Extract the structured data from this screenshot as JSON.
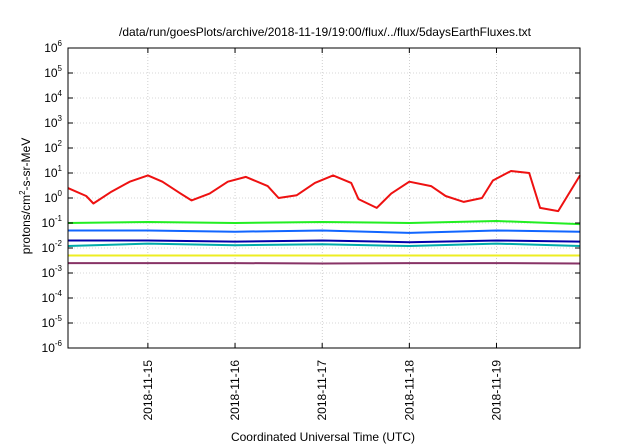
{
  "chart_data": {
    "type": "line",
    "title": "/data/run/goesPlots/archive/2018-11-19/19:00/flux/../flux/5daysEarthFluxes.txt",
    "xlabel": "Coordinated Universal Time (UTC)",
    "ylabel": {
      "prefix": "protons/cm",
      "sup": "2",
      "suffix": "-s-sr-MeV"
    },
    "y_scale": "log",
    "ylim": [
      1e-06,
      1000000
    ],
    "y_ticks": [
      {
        "value": 1e-06,
        "base": "10",
        "exp": "-6"
      },
      {
        "value": 1e-05,
        "base": "10",
        "exp": "-5"
      },
      {
        "value": 0.0001,
        "base": "10",
        "exp": "-4"
      },
      {
        "value": 0.001,
        "base": "10",
        "exp": "-3"
      },
      {
        "value": 0.01,
        "base": "10",
        "exp": "-2"
      },
      {
        "value": 0.1,
        "base": "10",
        "exp": "-1"
      },
      {
        "value": 1,
        "base": "10",
        "exp": "0"
      },
      {
        "value": 10,
        "base": "10",
        "exp": "1"
      },
      {
        "value": 100,
        "base": "10",
        "exp": "2"
      },
      {
        "value": 1000,
        "base": "10",
        "exp": "3"
      },
      {
        "value": 10000,
        "base": "10",
        "exp": "4"
      },
      {
        "value": 100000,
        "base": "10",
        "exp": "5"
      },
      {
        "value": 1000000,
        "base": "10",
        "exp": "6"
      }
    ],
    "xlim": [
      "2018-11-14 02:00",
      "2018-11-19 23:00"
    ],
    "x_ticks": [
      {
        "value": "2018-11-15 00:00",
        "label": "2018-11-15"
      },
      {
        "value": "2018-11-16 00:00",
        "label": "2018-11-16"
      },
      {
        "value": "2018-11-17 00:00",
        "label": "2018-11-17"
      },
      {
        "value": "2018-11-18 00:00",
        "label": "2018-11-18"
      },
      {
        "value": "2018-11-19 00:00",
        "label": "2018-11-19"
      }
    ],
    "grid": true,
    "legend": "none",
    "series": [
      {
        "color": "#ee1111",
        "x": [
          "2018-11-14 02:00",
          "2018-11-14 07:00",
          "2018-11-14 09:00",
          "2018-11-14 14:00",
          "2018-11-14 19:00",
          "2018-11-15 00:00",
          "2018-11-15 04:00",
          "2018-11-15 09:00",
          "2018-11-15 12:00",
          "2018-11-15 17:00",
          "2018-11-15 22:00",
          "2018-11-16 03:00",
          "2018-11-16 09:00",
          "2018-11-16 12:00",
          "2018-11-16 17:00",
          "2018-11-16 22:00",
          "2018-11-17 03:00",
          "2018-11-17 08:00",
          "2018-11-17 10:00",
          "2018-11-17 15:00",
          "2018-11-17 19:00",
          "2018-11-18 00:00",
          "2018-11-18 06:00",
          "2018-11-18 10:00",
          "2018-11-18 15:00",
          "2018-11-18 20:00",
          "2018-11-18 23:00",
          "2018-11-19 04:00",
          "2018-11-19 09:00",
          "2018-11-19 12:00",
          "2018-11-19 17:00",
          "2018-11-19 23:00"
        ],
        "values": [
          2.5,
          1.2,
          0.6,
          1.8,
          4.5,
          8,
          4.5,
          1.5,
          0.8,
          1.5,
          4.5,
          7,
          3,
          1,
          1.3,
          4,
          8,
          4,
          0.9,
          0.4,
          1.5,
          4.5,
          3,
          1.2,
          0.7,
          1,
          5,
          12,
          10,
          0.4,
          0.3,
          8
        ]
      },
      {
        "color": "#22ee22",
        "x": [
          "2018-11-14 02:00",
          "2018-11-15 00:00",
          "2018-11-16 00:00",
          "2018-11-17 00:00",
          "2018-11-18 00:00",
          "2018-11-19 00:00",
          "2018-11-19 23:00"
        ],
        "values": [
          0.1,
          0.11,
          0.1,
          0.11,
          0.1,
          0.12,
          0.09
        ]
      },
      {
        "color": "#00aaaa",
        "x": [
          "2018-11-14 02:00",
          "2018-11-15 00:00",
          "2018-11-16 00:00",
          "2018-11-17 00:00",
          "2018-11-18 00:00",
          "2018-11-19 00:00",
          "2018-11-19 23:00"
        ],
        "values": [
          0.012,
          0.015,
          0.013,
          0.014,
          0.012,
          0.015,
          0.012
        ]
      },
      {
        "color": "#1166ff",
        "x": [
          "2018-11-14 02:00",
          "2018-11-15 00:00",
          "2018-11-16 00:00",
          "2018-11-17 00:00",
          "2018-11-18 00:00",
          "2018-11-19 00:00",
          "2018-11-19 23:00"
        ],
        "values": [
          0.05,
          0.05,
          0.045,
          0.05,
          0.04,
          0.05,
          0.045
        ]
      },
      {
        "color": "#0000aa",
        "x": [
          "2018-11-14 02:00",
          "2018-11-15 00:00",
          "2018-11-16 00:00",
          "2018-11-17 00:00",
          "2018-11-18 00:00",
          "2018-11-19 00:00",
          "2018-11-19 23:00"
        ],
        "values": [
          0.02,
          0.02,
          0.018,
          0.02,
          0.017,
          0.02,
          0.018
        ]
      },
      {
        "color": "#eeee22",
        "x": [
          "2018-11-14 02:00",
          "2018-11-15 00:00",
          "2018-11-16 00:00",
          "2018-11-17 00:00",
          "2018-11-18 00:00",
          "2018-11-19 00:00",
          "2018-11-19 23:00"
        ],
        "values": [
          0.005,
          0.005,
          0.005,
          0.005,
          0.005,
          0.005,
          0.005
        ]
      },
      {
        "color": "#883366",
        "x": [
          "2018-11-14 02:00",
          "2018-11-15 00:00",
          "2018-11-16 00:00",
          "2018-11-17 00:00",
          "2018-11-18 00:00",
          "2018-11-19 00:00",
          "2018-11-19 23:00"
        ],
        "values": [
          0.0025,
          0.0025,
          0.0025,
          0.0024,
          0.0025,
          0.0025,
          0.0024
        ]
      }
    ]
  }
}
